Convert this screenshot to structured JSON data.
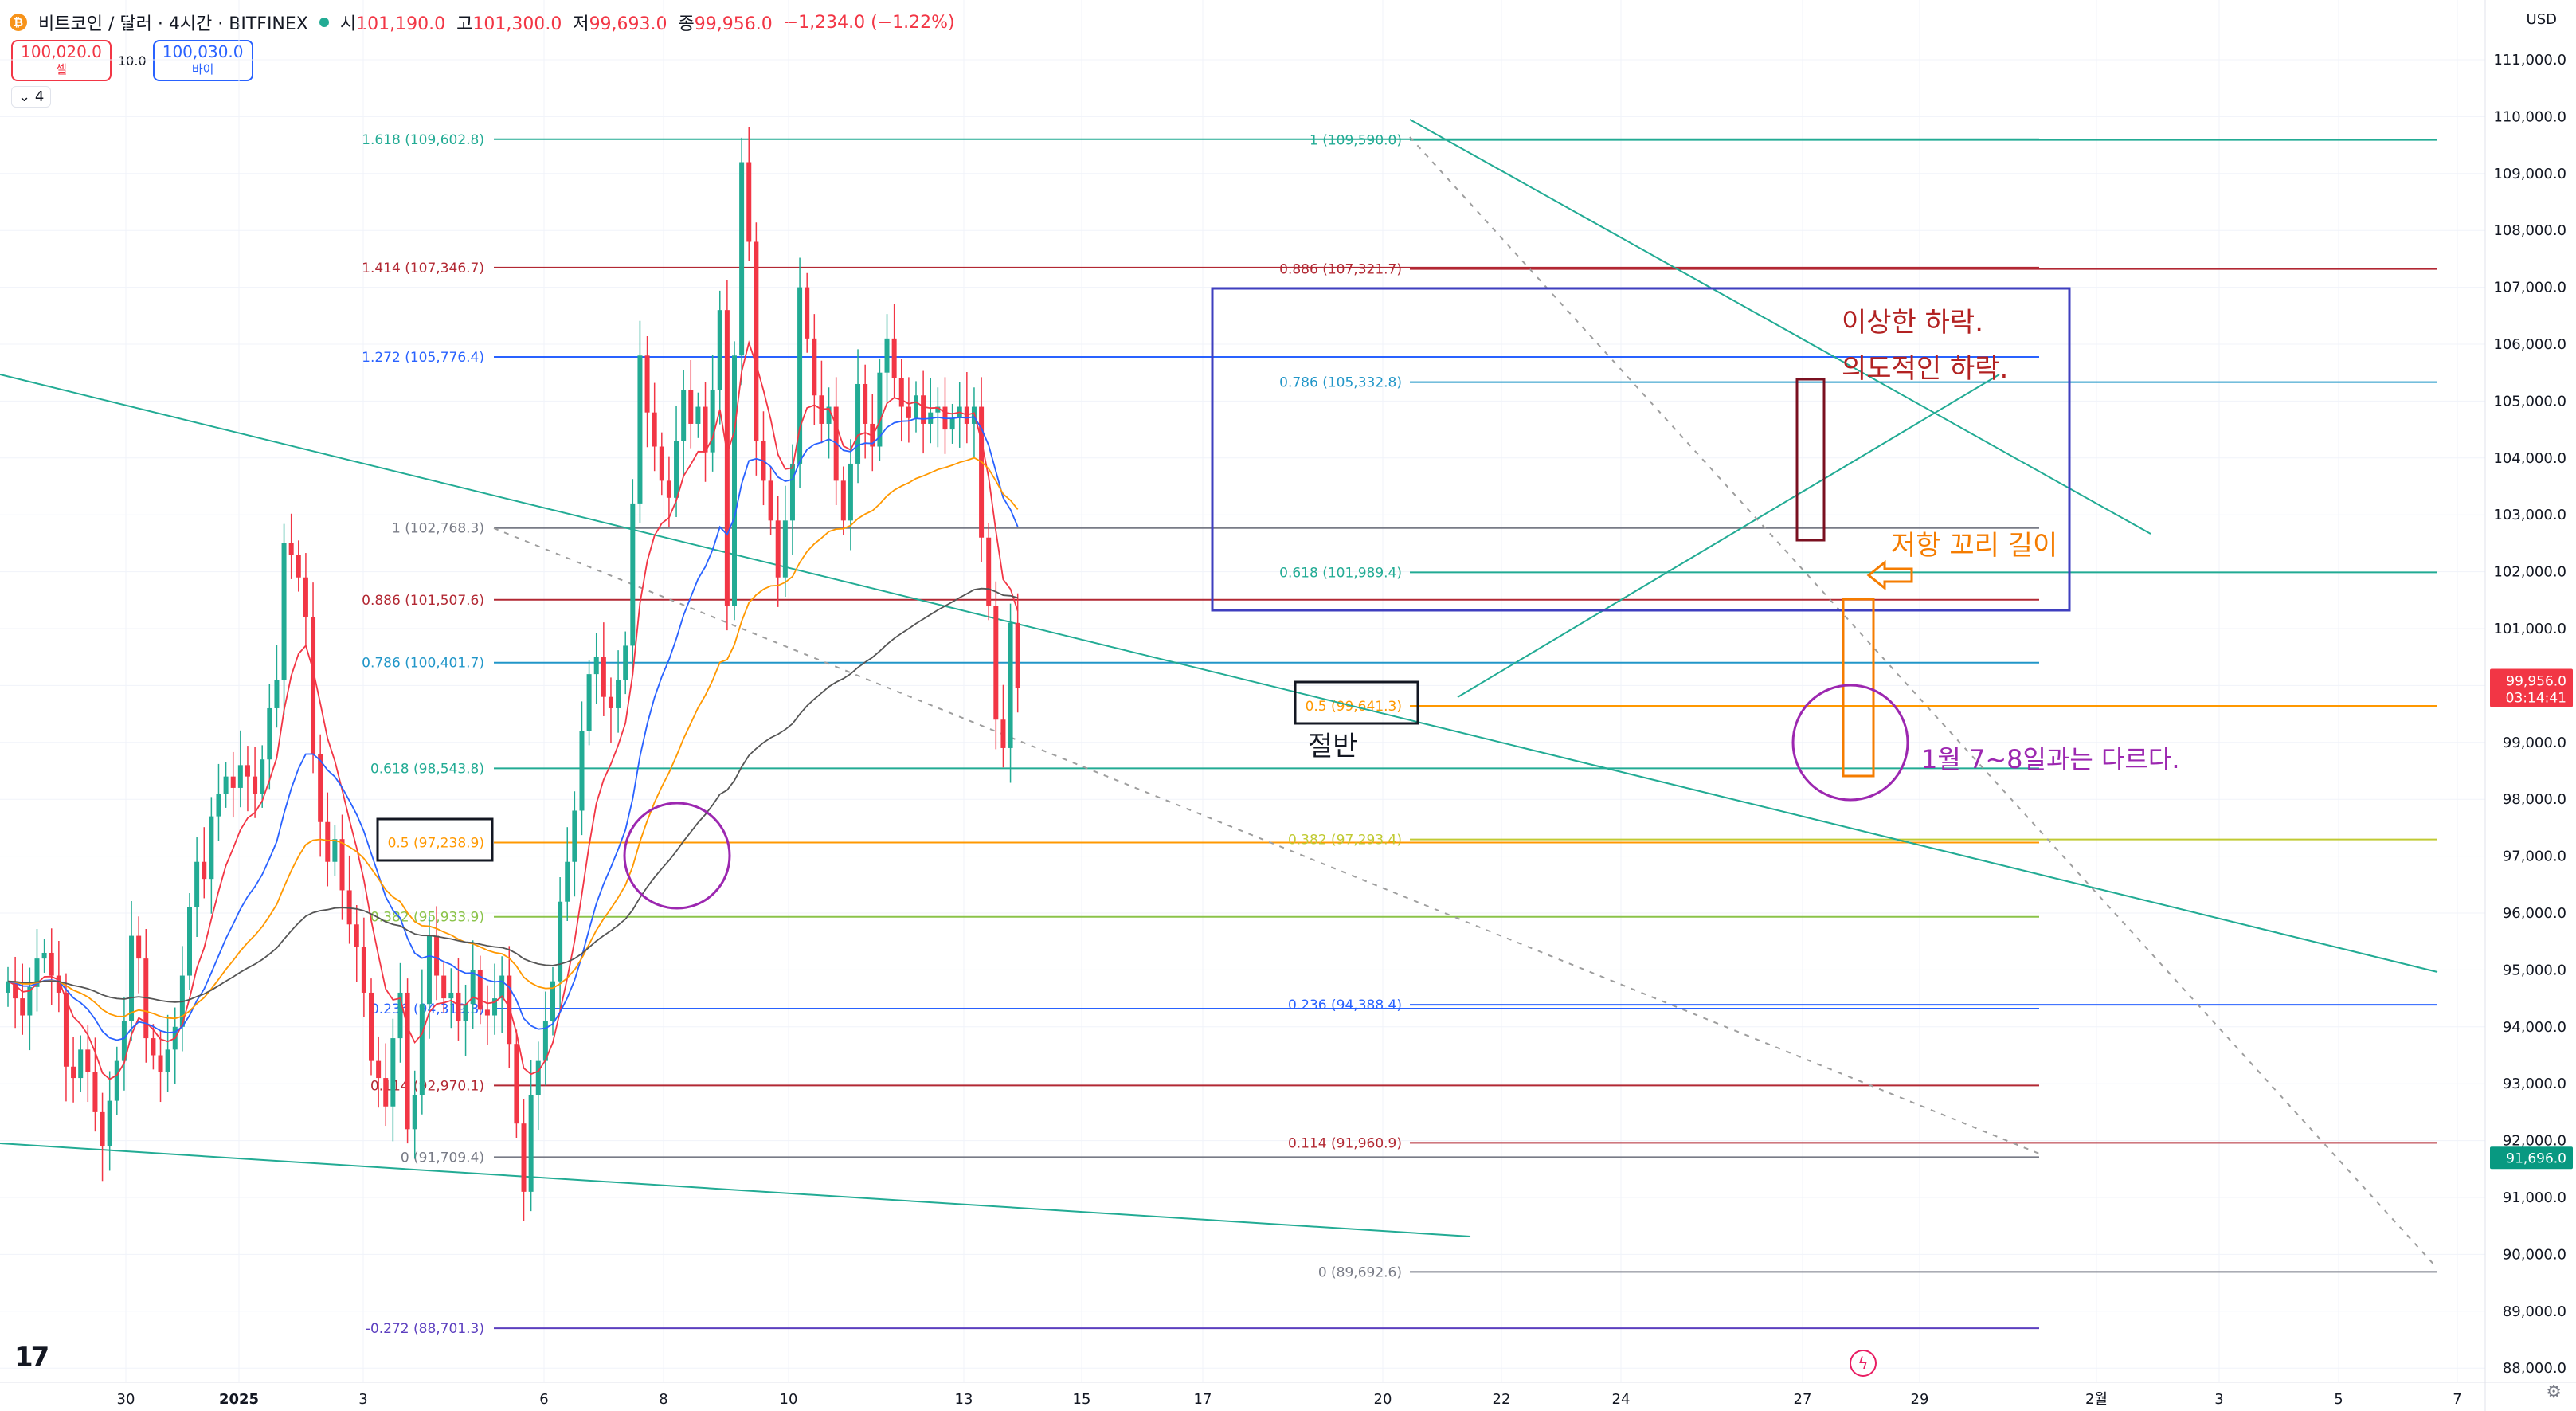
{
  "header": {
    "coin_icon": "bitcoin-icon",
    "symbol_title": "비트코인 / 달러 · 4시간 · BITFINEX",
    "open_label": "시",
    "open": "101,190.0",
    "high_label": "고",
    "high": "101,300.0",
    "low_label": "저",
    "low": "99,693.0",
    "close_label": "종",
    "close": "99,956.0",
    "change": "−1,234.0 (−1.22%)"
  },
  "trade": {
    "sell_price": "100,020.0",
    "sell_label": "셀",
    "spread": "10.0",
    "buy_price": "100,030.0",
    "buy_label": "바이"
  },
  "indicators_toggle": "4",
  "currency": "USD",
  "colors": {
    "up": "#22ab94",
    "down": "#f23645",
    "ema_red": "#f23645",
    "ema_blue": "#2962ff",
    "ema_orange": "#ff9800",
    "ema_black": "#555555",
    "box_blue": "#3f3fbf",
    "annot_red": "#b22222",
    "annot_orange": "#f57c00",
    "annot_purple": "#9c27b0"
  },
  "price_axis": {
    "labels": [
      "111,000.0",
      "110,000.0",
      "109,000.0",
      "108,000.0",
      "107,000.0",
      "106,000.0",
      "105,000.0",
      "104,000.0",
      "103,000.0",
      "102,000.0",
      "101,000.0",
      "100,000.0",
      "99,000.0",
      "98,000.0",
      "97,000.0",
      "96,000.0",
      "95,000.0",
      "94,000.0",
      "93,000.0",
      "92,000.0",
      "91,000.0",
      "90,000.0",
      "89,000.0",
      "88,000.0"
    ],
    "last_price": "99,956.0",
    "countdown": "03:14:41",
    "marker_price": "91,696.0"
  },
  "time_axis": {
    "labels": [
      "30",
      "2025",
      "3",
      "6",
      "8",
      "10",
      "13",
      "15",
      "17",
      "20",
      "22",
      "24",
      "27",
      "29",
      "2월",
      "3",
      "5",
      "7"
    ]
  },
  "fib_left": {
    "labels": [
      "1.618 (109,602.8)",
      "1.414 (107,346.7)",
      "1.272 (105,776.4)",
      "1 (102,768.3)",
      "0.886 (101,507.6)",
      "0.786 (100,401.7)",
      "0.618 (98,543.8)",
      "0.5 (97,238.9)",
      "0.382 (95,933.9)",
      "0.236 (94,319.3)",
      "0.114 (92,970.1)",
      "0 (91,709.4)",
      "-0.272 (88,701.3)"
    ]
  },
  "fib_right": {
    "labels": [
      "1 (109,590.0)",
      "0.886 (107,321.7)",
      "0.786 (105,332.8)",
      "0.618 (101,989.4)",
      "0.5 (99,641.3)",
      "0.382 (97,293.4)",
      "0.236 (94,388.4)",
      "0.114 (91,960.9)",
      "0 (89,692.6)"
    ]
  },
  "annotations": {
    "strange_drop": "이상한 하락.",
    "intentional_drop": "의도적인 하락.",
    "resistance_tail": "저항 꼬리 길이",
    "half": "절반",
    "different": "1월 7~8일과는 다르다."
  },
  "icons": {
    "tv_logo": "tradingview-logo-icon",
    "bolt": "lightning-icon",
    "gear": "gear-icon"
  }
}
